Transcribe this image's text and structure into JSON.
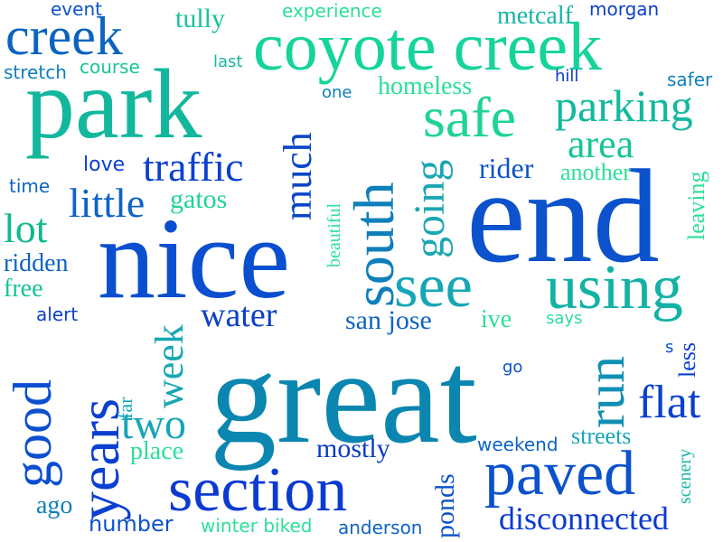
{
  "words": [
    {
      "text": "great",
      "color": "#0a86b0"
    },
    {
      "text": "end",
      "color": "#0b52cc"
    },
    {
      "text": "nice",
      "color": "#0a4fd0"
    },
    {
      "text": "park",
      "color": "#12b79d"
    },
    {
      "text": "coyote creek",
      "color": "#15d49a"
    },
    {
      "text": "creek",
      "color": "#0a64c0"
    },
    {
      "text": "safe",
      "color": "#1ed394"
    },
    {
      "text": "parking",
      "color": "#12b99d"
    },
    {
      "text": "area",
      "color": "#16c597"
    },
    {
      "text": "using",
      "color": "#12b2a5"
    },
    {
      "text": "see",
      "color": "#17a6b6"
    },
    {
      "text": "south",
      "color": "#0e7fbc"
    },
    {
      "text": "going",
      "color": "#1ba7b3"
    },
    {
      "text": "much",
      "color": "#0a46c8"
    },
    {
      "text": "traffic",
      "color": "#0a3fd0"
    },
    {
      "text": "little",
      "color": "#0e63c4"
    },
    {
      "text": "lot",
      "color": "#11b98f"
    },
    {
      "text": "water",
      "color": "#0b40c8"
    },
    {
      "text": "run",
      "color": "#0f8fb4"
    },
    {
      "text": "good",
      "color": "#0b4fd0"
    },
    {
      "text": "years",
      "color": "#0a3fd0"
    },
    {
      "text": "week",
      "color": "#17a7b3"
    },
    {
      "text": "two",
      "color": "#17a6b6"
    },
    {
      "text": "section",
      "color": "#0b3ad2"
    },
    {
      "text": "paved",
      "color": "#0b52cc"
    },
    {
      "text": "flat",
      "color": "#0a3fd0"
    },
    {
      "text": "disconnected",
      "color": "#0b3ad2"
    },
    {
      "text": "mostly",
      "color": "#0a3cc8"
    },
    {
      "text": "ponds",
      "color": "#0b52cc"
    },
    {
      "text": "san jose",
      "color": "#0e63c4"
    },
    {
      "text": "ive",
      "color": "#2bdf9a"
    },
    {
      "text": "event",
      "color": "#0b52cc"
    },
    {
      "text": "experience",
      "color": "#2bdf9a"
    },
    {
      "text": "tully",
      "color": "#16c597"
    },
    {
      "text": "metcalf",
      "color": "#17b4a9"
    },
    {
      "text": "morgan",
      "color": "#0a3fd0"
    },
    {
      "text": "stretch",
      "color": "#0e7fbc"
    },
    {
      "text": "course",
      "color": "#16c597"
    },
    {
      "text": "last",
      "color": "#1ab5a5"
    },
    {
      "text": "one",
      "color": "#0e7fbc"
    },
    {
      "text": "homeless",
      "color": "#2bdf9a"
    },
    {
      "text": "hill",
      "color": "#0a3cc8"
    },
    {
      "text": "safer",
      "color": "#0e7fbc"
    },
    {
      "text": "rider",
      "color": "#0b52cc"
    },
    {
      "text": "another",
      "color": "#2bdf9a"
    },
    {
      "text": "love",
      "color": "#0a3fd0"
    },
    {
      "text": "time",
      "color": "#0e63c4"
    },
    {
      "text": "gatos",
      "color": "#1ed394"
    },
    {
      "text": "beautiful",
      "color": "#2bdf9a"
    },
    {
      "text": "leaving",
      "color": "#2bdf9a"
    },
    {
      "text": "scenery",
      "color": "#1ab5a5"
    },
    {
      "text": "ridden",
      "color": "#0e63c4"
    },
    {
      "text": "free",
      "color": "#16c597"
    },
    {
      "text": "alert",
      "color": "#0a3fd0"
    },
    {
      "text": "says",
      "color": "#2bdf9a"
    },
    {
      "text": "less",
      "color": "#0a3fd0"
    },
    {
      "text": "s",
      "color": "#0b52cc"
    },
    {
      "text": "go",
      "color": "#0b52cc"
    },
    {
      "text": "far",
      "color": "#17a6b6"
    },
    {
      "text": "place",
      "color": "#2bdf9a"
    },
    {
      "text": "streets",
      "color": "#17a6b6"
    },
    {
      "text": "weekend",
      "color": "#0e63c4"
    },
    {
      "text": "ago",
      "color": "#0e7fbc"
    },
    {
      "text": "number",
      "color": "#0b52cc"
    },
    {
      "text": "winter biked",
      "color": "#2bdf9a"
    },
    {
      "text": "anderson",
      "color": "#0e63c4"
    }
  ]
}
